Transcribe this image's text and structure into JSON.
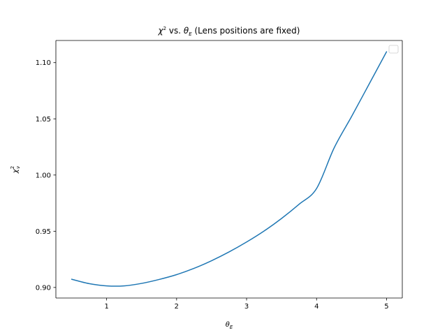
{
  "chart_data": {
    "type": "line",
    "title": {
      "symbol": "χ",
      "sup": "2",
      "middle": " vs. ",
      "symbol2": "θ",
      "sub2": "E",
      "rest": " (Lens positions are fixed)"
    },
    "xlabel": {
      "symbol": "θ",
      "sub": "E"
    },
    "ylabel": {
      "symbol": "χ",
      "sup": "2",
      "sub": "ν"
    },
    "xlim": [
      0.275,
      5.225
    ],
    "ylim": [
      0.8906,
      1.1197
    ],
    "xticks": [
      {
        "value": 1,
        "label": "1"
      },
      {
        "value": 2,
        "label": "2"
      },
      {
        "value": 3,
        "label": "3"
      },
      {
        "value": 4,
        "label": "4"
      },
      {
        "value": 5,
        "label": "5"
      }
    ],
    "yticks": [
      {
        "value": 0.9,
        "label": "0.90"
      },
      {
        "value": 0.95,
        "label": "0.95"
      },
      {
        "value": 1.0,
        "label": "1.00"
      },
      {
        "value": 1.05,
        "label": "1.05"
      },
      {
        "value": 1.1,
        "label": "1.10"
      }
    ],
    "grid": false,
    "legend": {
      "placement": "upper-right",
      "entries": []
    },
    "series": [
      {
        "color": "#1f77b4",
        "x": [
          0.5,
          0.75,
          1.0,
          1.25,
          1.5,
          1.75,
          2.0,
          2.25,
          2.5,
          2.75,
          3.0,
          3.25,
          3.5,
          3.75,
          4.0,
          4.25,
          4.5,
          4.75,
          5.0
        ],
        "y": [
          0.9073,
          0.9034,
          0.9014,
          0.9014,
          0.9036,
          0.9071,
          0.9114,
          0.917,
          0.9238,
          0.9316,
          0.9404,
          0.9502,
          0.9614,
          0.974,
          0.988,
          1.024,
          1.052,
          1.0808,
          1.1097
        ]
      }
    ]
  }
}
